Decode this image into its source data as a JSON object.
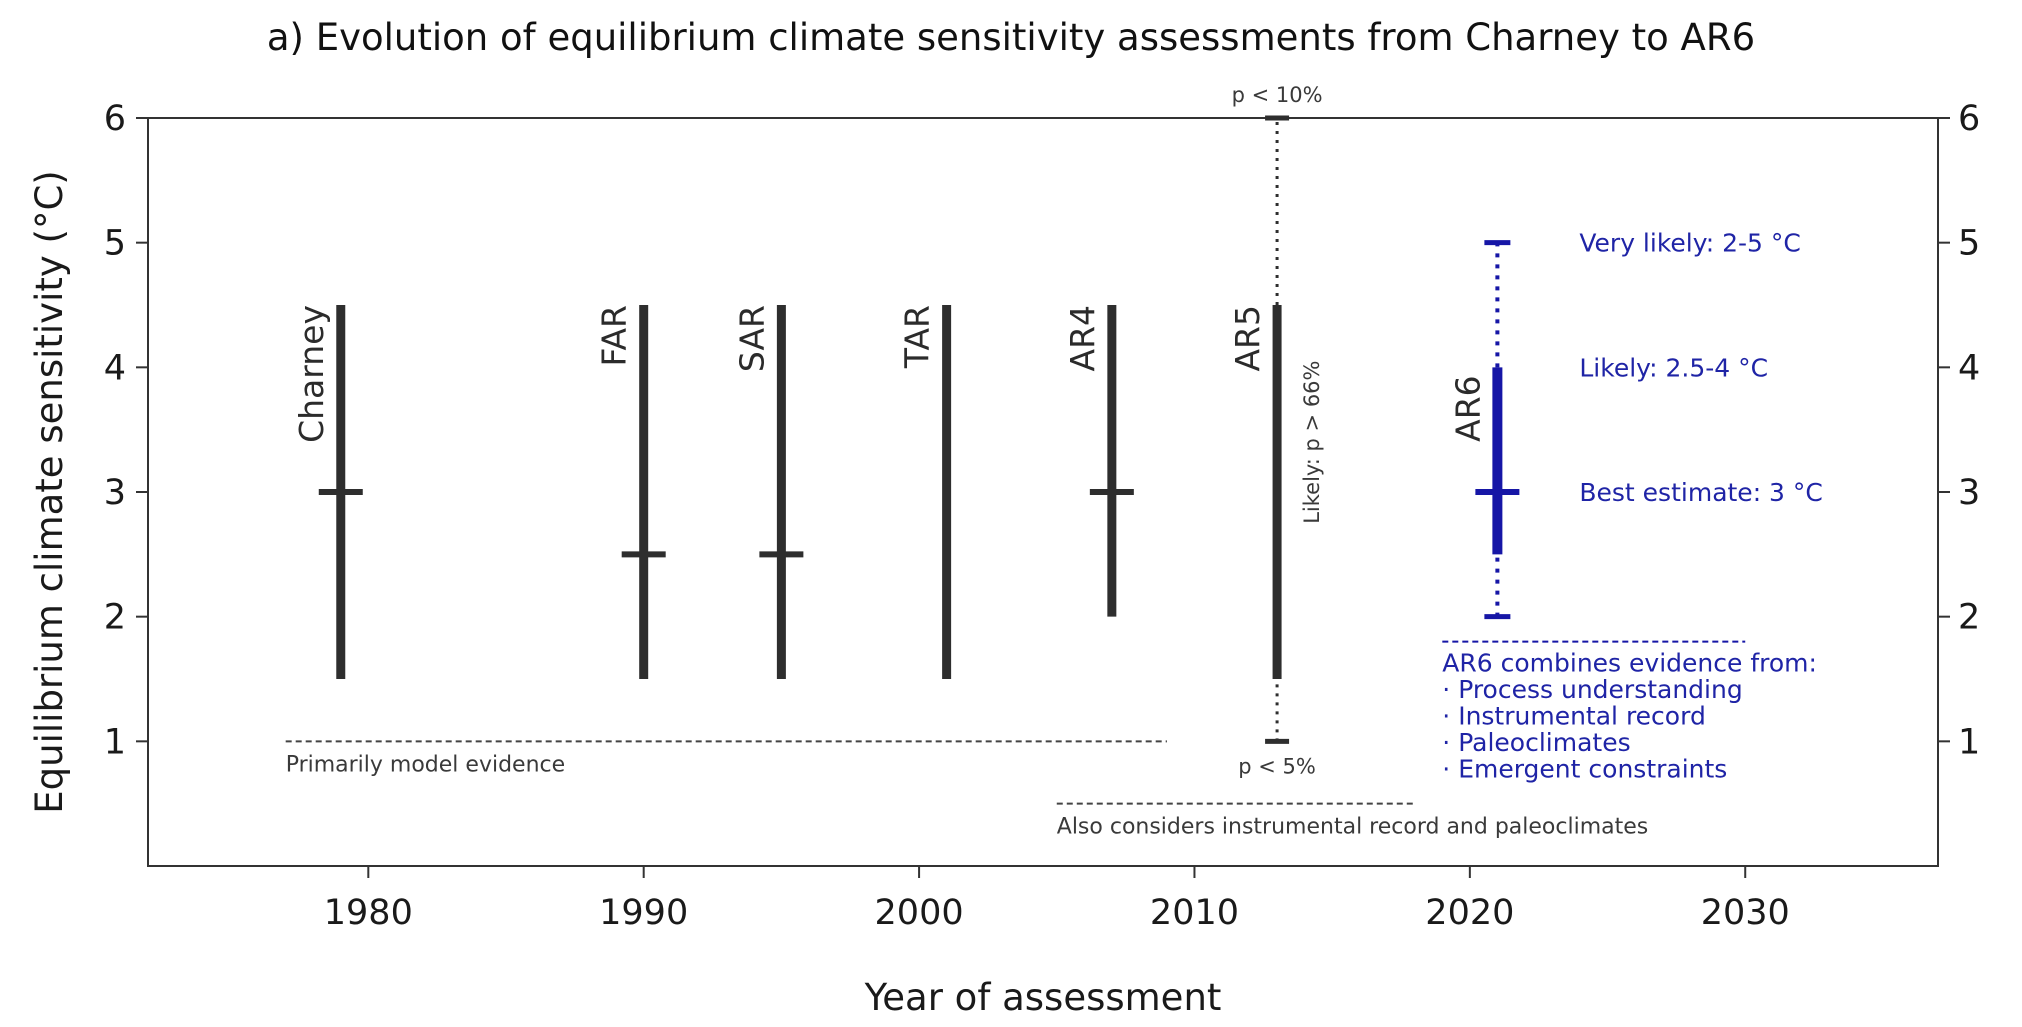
{
  "chart_data": {
    "type": "range",
    "title": "a) Evolution of equilibrium climate sensitivity assessments from Charney to AR6",
    "xlabel": "Year of assessment",
    "ylabel": "Equilibrium climate sensitivity (°C)",
    "xlim": [
      1972,
      2037
    ],
    "ylim": [
      0,
      6
    ],
    "x_ticks": [
      1980,
      1990,
      2000,
      2010,
      2020,
      2030
    ],
    "y_ticks": [
      1,
      2,
      3,
      4,
      5,
      6
    ],
    "right_axis_ticks": [
      1,
      2,
      3,
      4,
      5,
      6
    ],
    "grid": false,
    "colors": {
      "historical": "#2e2e2e",
      "ar6": "#1616a6",
      "annotation_text": "#1f24a6"
    },
    "assessments": [
      {
        "label": "Charney",
        "year": 1979,
        "likely_low": 1.5,
        "likely_high": 4.5,
        "best_estimate": 3.0
      },
      {
        "label": "FAR",
        "year": 1990,
        "likely_low": 1.5,
        "likely_high": 4.5,
        "best_estimate": 2.5
      },
      {
        "label": "SAR",
        "year": 1995,
        "likely_low": 1.5,
        "likely_high": 4.5,
        "best_estimate": 2.5
      },
      {
        "label": "TAR",
        "year": 2001,
        "likely_low": 1.5,
        "likely_high": 4.5,
        "best_estimate": null
      },
      {
        "label": "AR4",
        "year": 2007,
        "likely_low": 2.0,
        "likely_high": 4.5,
        "best_estimate": 3.0
      },
      {
        "label": "AR5",
        "year": 2013,
        "likely_low": 1.5,
        "likely_high": 4.5,
        "best_estimate": null,
        "extended_low": 1.0,
        "extended_high": 6.0
      },
      {
        "label": "AR6",
        "year": 2021,
        "likely_low": 2.5,
        "likely_high": 4.0,
        "best_estimate": 3.0,
        "very_likely_low": 2.0,
        "very_likely_high": 5.0
      }
    ],
    "annotations": {
      "ar5_upper": "p < 10%",
      "ar5_lower": "p < 5%",
      "ar5_likely": "Likely: p > 66%",
      "ar6_very_likely": "Very likely: 2-5 °C",
      "ar6_likely": "Likely: 2.5-4 °C",
      "ar6_best": "Best estimate: 3 °C",
      "ar6_evidence": [
        "AR6 combines evidence from:",
        "· Process understanding",
        "· Instrumental record",
        "· Paleoclimates",
        "· Emergent constraints"
      ]
    },
    "evidence_periods": [
      {
        "label": "Primarily model evidence",
        "x_start": 1977,
        "x_end": 2009,
        "y": 1.0
      },
      {
        "label": "Also considers instrumental record and paleoclimates",
        "x_start": 2005,
        "x_end": 2018,
        "y": 0.5
      },
      {
        "label": "",
        "x_start": 2019,
        "x_end": 2030,
        "y": 1.8
      }
    ]
  }
}
